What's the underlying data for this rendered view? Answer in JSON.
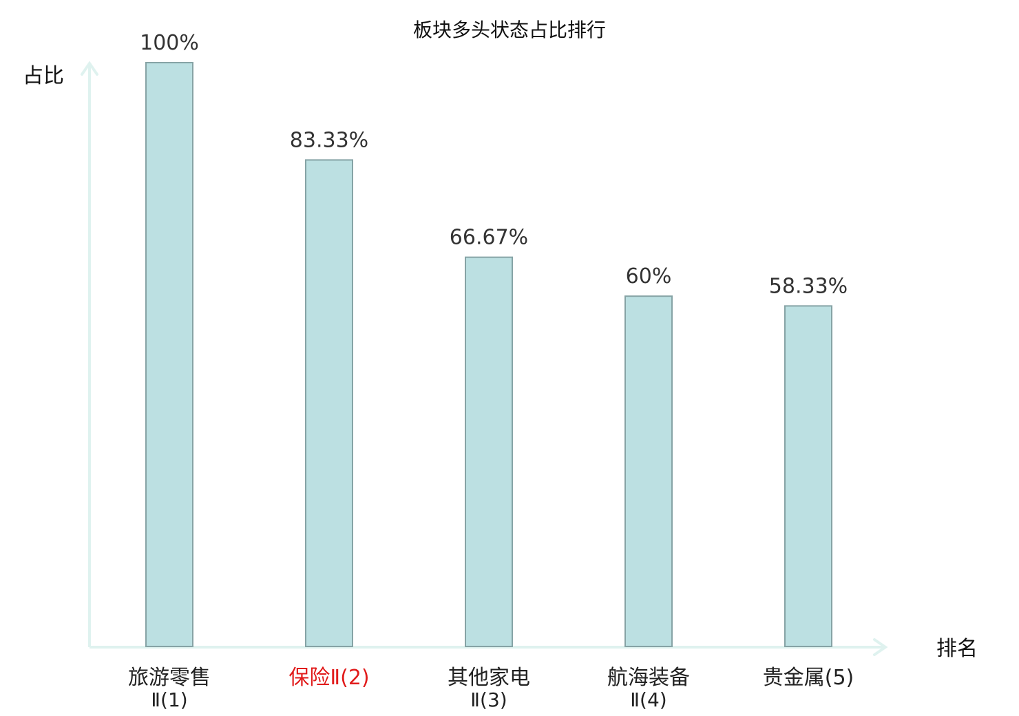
{
  "chart_data": {
    "type": "bar",
    "title": "板块多头状态占比排行",
    "ylabel": "占比",
    "xlabel": "排名",
    "ylim": [
      0,
      100
    ],
    "grid": false,
    "categories": [
      {
        "line1": "旅游零售",
        "line2": "Ⅱ(1)",
        "highlight": false
      },
      {
        "line1": "保险Ⅱ(2)",
        "line2": "",
        "highlight": true
      },
      {
        "line1": "其他家电",
        "line2": "Ⅱ(3)",
        "highlight": false
      },
      {
        "line1": "航海装备",
        "line2": "Ⅱ(4)",
        "highlight": false
      },
      {
        "line1": "贵金属(5)",
        "line2": "",
        "highlight": false
      }
    ],
    "values": [
      100,
      83.33,
      66.67,
      60,
      58.33
    ],
    "value_labels": [
      "100%",
      "83.33%",
      "66.67%",
      "60%",
      "58.33%"
    ],
    "colors": {
      "bar_fill": "#bce0e2",
      "bar_stroke": "#86a3a5",
      "axis": "#dff2ef",
      "label_default": "#222222",
      "label_highlight": "#e11b1b",
      "value_text": "#333333"
    }
  }
}
